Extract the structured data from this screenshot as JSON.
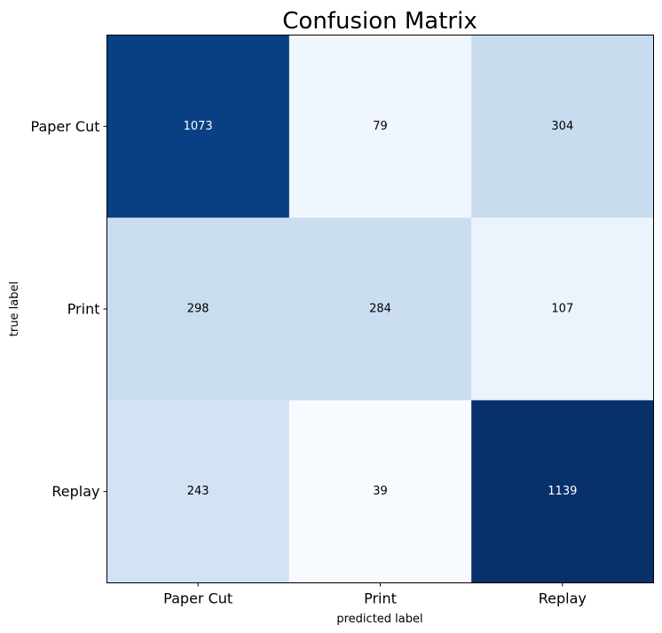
{
  "chart_data": {
    "type": "heatmap",
    "title": "Confusion Matrix",
    "xlabel": "predicted label",
    "ylabel": "true label",
    "x_categories": [
      "Paper Cut",
      "Print",
      "Replay"
    ],
    "y_categories": [
      "Paper Cut",
      "Print",
      "Replay"
    ],
    "values": [
      [
        1073,
        79,
        304
      ],
      [
        298,
        284,
        107
      ],
      [
        243,
        39,
        1139
      ]
    ],
    "colormap": "Blues",
    "grid": false,
    "colors": {
      "light_text": "#ffffff",
      "dark_text": "#000000",
      "frame": "#000000"
    }
  }
}
